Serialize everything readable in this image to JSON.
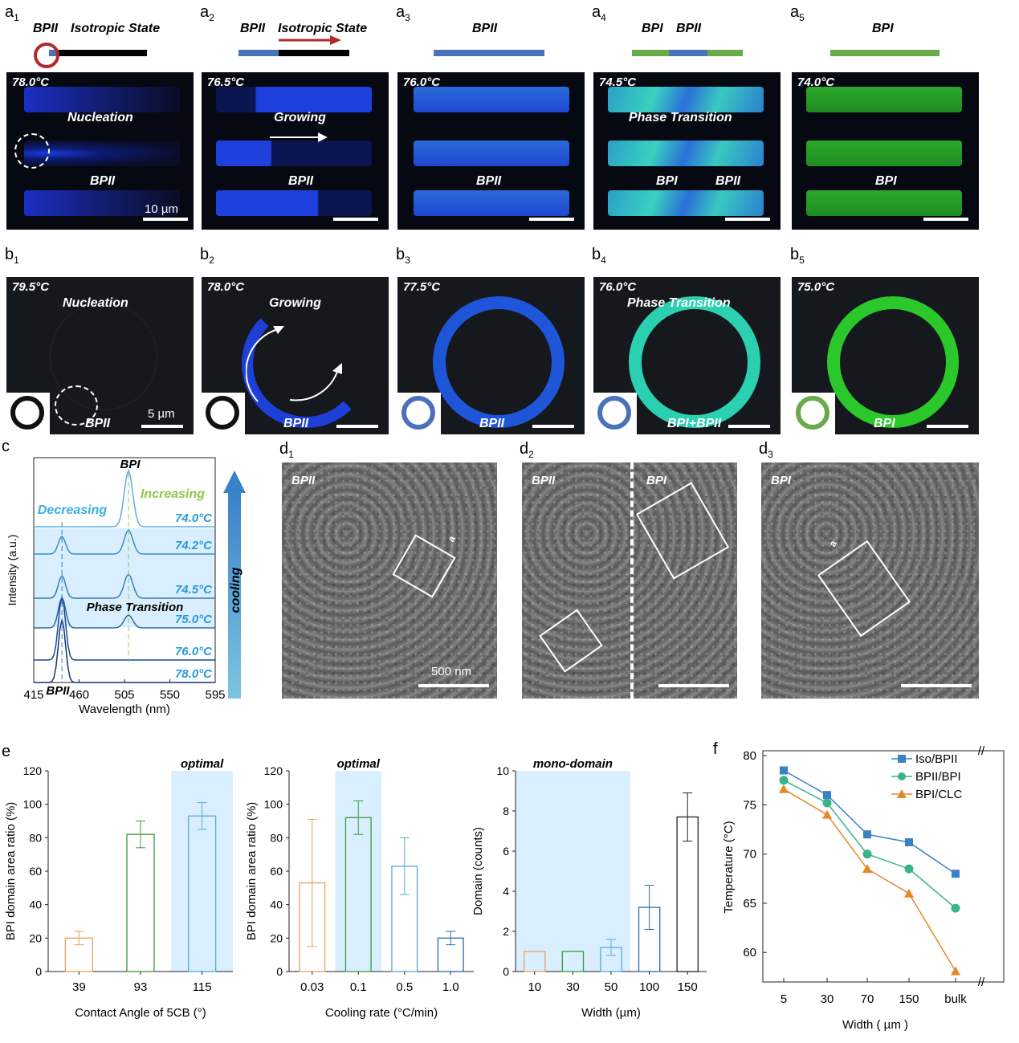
{
  "panels": {
    "a": [
      {
        "label": "a",
        "sub": "1",
        "temp": "78.0°C",
        "top": [
          "BPII",
          "Isotropic State"
        ],
        "mid": "Nucleation",
        "low": "BPII",
        "scale": "10 µm"
      },
      {
        "label": "a",
        "sub": "2",
        "temp": "76.5°C",
        "top": [
          "BPII",
          "Isotropic State"
        ],
        "mid": "Growing",
        "low": "BPII"
      },
      {
        "label": "a",
        "sub": "3",
        "temp": "76.0°C",
        "top": [
          "BPII"
        ],
        "low": "BPII"
      },
      {
        "label": "a",
        "sub": "4",
        "temp": "74.5°C",
        "top": [
          "BPI",
          "BPII"
        ],
        "mid": "Phase Transition",
        "low": "BPI",
        "low2": "BPII"
      },
      {
        "label": "a",
        "sub": "5",
        "temp": "74.0°C",
        "top": [
          "BPI"
        ],
        "low": "BPI"
      }
    ],
    "b": [
      {
        "label": "b",
        "sub": "1",
        "temp": "79.5°C",
        "mid": "Nucleation",
        "low": "BPII",
        "scale": "5 µm"
      },
      {
        "label": "b",
        "sub": "2",
        "temp": "78.0°C",
        "mid": "Growing",
        "low": "BPII"
      },
      {
        "label": "b",
        "sub": "3",
        "temp": "77.5°C",
        "low": "BPII"
      },
      {
        "label": "b",
        "sub": "4",
        "temp": "76.0°C",
        "mid": "Phase Transition",
        "low": "BPI+BPII"
      },
      {
        "label": "b",
        "sub": "5",
        "temp": "75.0°C",
        "low": "BPI"
      }
    ],
    "d": [
      {
        "label": "d",
        "sub": "1",
        "tag": "BPII",
        "box": "a",
        "scale": "500 nm"
      },
      {
        "label": "d",
        "sub": "2",
        "tag": "BPII",
        "tag2": "BPI"
      },
      {
        "label": "d",
        "sub": "3",
        "tag": "BPI",
        "box": "a"
      }
    ],
    "c_label": "c",
    "e_label": "e",
    "f_label": "f"
  },
  "chart_data": [
    {
      "id": "c",
      "type": "line",
      "xlabel": "Wavelength (nm)",
      "ylabel": "Intensity (a.u.)",
      "xticks": [
        "415",
        "460",
        "505",
        "550",
        "595"
      ],
      "xlim": [
        415,
        595
      ],
      "series": [
        {
          "name": "74.0°C",
          "peak": 510
        },
        {
          "name": "74.2°C",
          "peaks": [
            443,
            509
          ]
        },
        {
          "name": "74.5°C",
          "peaks": [
            443,
            509
          ]
        },
        {
          "name": "75.0°C",
          "peaks": [
            443,
            509
          ]
        },
        {
          "name": "76.0°C",
          "peak": 443
        },
        {
          "name": "78.0°C",
          "peak": 443
        }
      ],
      "annotations": {
        "bpi": "BPI",
        "bpii": "BPII",
        "decreasing": "Decreasing",
        "increasing": "Increasing",
        "phase": "Phase Transition",
        "cooling": "cooling"
      }
    },
    {
      "id": "e1",
      "type": "bar",
      "xlabel": "Contact Angle of 5CB (°)",
      "ylabel": "BPI domain area ratio (%)",
      "categories": [
        "39",
        "93",
        "115"
      ],
      "values": [
        20,
        82,
        93
      ],
      "errors": [
        4,
        8,
        8
      ],
      "ylim": [
        0,
        120
      ],
      "yticks": [
        "0",
        "20",
        "40",
        "60",
        "80",
        "100",
        "120"
      ],
      "highlight": "optimal",
      "colors": [
        "#e8a15c",
        "#3a9a3a",
        "#5aa8d8"
      ]
    },
    {
      "id": "e2",
      "type": "bar",
      "xlabel": "Cooling rate (°C/min)",
      "ylabel": "BPI domain area ratio (%)",
      "categories": [
        "0.03",
        "0.1",
        "0.5",
        "1.0"
      ],
      "values": [
        53,
        92,
        63,
        20
      ],
      "errors": [
        38,
        10,
        17,
        4
      ],
      "ylim": [
        0,
        120
      ],
      "yticks": [
        "0",
        "20",
        "40",
        "60",
        "80",
        "100",
        "120"
      ],
      "highlight": "optimal",
      "colors": [
        "#e8a15c",
        "#3a9a3a",
        "#5aa8d8",
        "#2a6aa8"
      ]
    },
    {
      "id": "e3",
      "type": "bar",
      "xlabel": "Width (µm)",
      "ylabel": "Domain (counts)",
      "categories": [
        "10",
        "30",
        "50",
        "100",
        "150"
      ],
      "values": [
        1,
        1,
        1.2,
        3.2,
        7.7
      ],
      "errors": [
        0,
        0,
        0.4,
        1.1,
        1.2
      ],
      "ylim": [
        0,
        10
      ],
      "yticks": [
        "0",
        "2",
        "4",
        "6",
        "8",
        "10"
      ],
      "highlight": "mono-domain",
      "colors": [
        "#e8a15c",
        "#3a9a3a",
        "#5aa8d8",
        "#2a6aa8",
        "#222222"
      ]
    },
    {
      "id": "f",
      "type": "line",
      "xlabel": "Width ( µm )",
      "ylabel": "Temperature (°C)",
      "categories": [
        "5",
        "30",
        "70",
        "150",
        "bulk"
      ],
      "ylim": [
        57,
        80.5
      ],
      "yticks": [
        "60",
        "65",
        "70",
        "75",
        "80"
      ],
      "series": [
        {
          "name": "Iso/BPII",
          "values": [
            78.5,
            76,
            72,
            71.2,
            68
          ],
          "color": "#3b82c4",
          "marker": "square"
        },
        {
          "name": "BPII/BPI",
          "values": [
            77.5,
            75.2,
            70,
            68.5,
            64.5
          ],
          "color": "#3bb38a",
          "marker": "circle"
        },
        {
          "name": "BPI/CLC",
          "values": [
            76.6,
            74,
            68.5,
            66,
            58.1
          ],
          "color": "#e8862a",
          "marker": "triangle"
        }
      ]
    }
  ]
}
